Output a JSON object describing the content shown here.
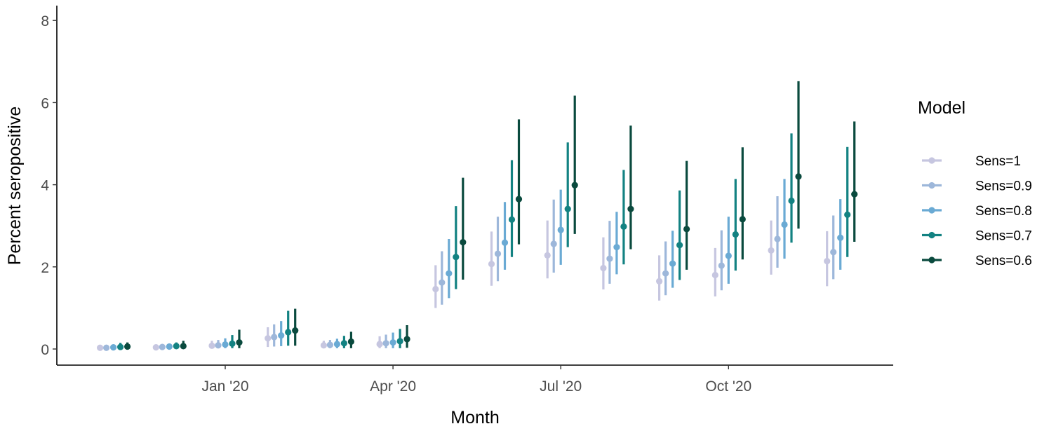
{
  "chart_data": {
    "type": "scatter",
    "subtype": "point-range",
    "xlabel": "Month",
    "ylabel": "Percent seropositive",
    "ylim": [
      0,
      8
    ],
    "y_ticks": [
      0,
      2,
      4,
      6,
      8
    ],
    "x_tick_labels": [
      "Jan '20",
      "Apr '20",
      "Jul '20",
      "Oct '20"
    ],
    "x_tick_months": [
      "2020-01",
      "2020-04",
      "2020-07",
      "2020-10"
    ],
    "months": [
      "2019-11",
      "2019-12",
      "2020-01",
      "2020-02",
      "2020-03",
      "2020-04",
      "2020-05",
      "2020-06",
      "2020-07",
      "2020-08",
      "2020-09",
      "2020-10",
      "2020-11",
      "2020-12"
    ],
    "legend": {
      "title": "Model",
      "position": "right"
    },
    "grid": false,
    "series": [
      {
        "name": "Sens=1",
        "color": "#c6c6e0",
        "values": [
          0.03,
          0.04,
          0.08,
          0.26,
          0.09,
          0.12,
          1.46,
          2.07,
          2.28,
          1.97,
          1.65,
          1.8,
          2.4,
          2.14
        ],
        "lower": [
          0.0,
          0.0,
          0.02,
          0.05,
          0.02,
          0.02,
          1.0,
          1.54,
          1.72,
          1.45,
          1.18,
          1.28,
          1.81,
          1.53
        ],
        "upper": [
          0.08,
          0.1,
          0.2,
          0.53,
          0.2,
          0.31,
          2.04,
          2.86,
          3.13,
          2.72,
          2.28,
          2.46,
          3.13,
          2.87
        ]
      },
      {
        "name": "Sens=0.9",
        "color": "#9db7da",
        "values": [
          0.03,
          0.05,
          0.09,
          0.29,
          0.1,
          0.14,
          1.62,
          2.32,
          2.56,
          2.2,
          1.84,
          2.03,
          2.68,
          2.36
        ],
        "lower": [
          0.0,
          0.0,
          0.02,
          0.06,
          0.02,
          0.02,
          1.08,
          1.65,
          1.86,
          1.59,
          1.31,
          1.43,
          1.98,
          1.7
        ],
        "upper": [
          0.09,
          0.11,
          0.22,
          0.6,
          0.22,
          0.35,
          2.38,
          3.22,
          3.64,
          3.12,
          2.62,
          2.89,
          3.72,
          3.25
        ]
      },
      {
        "name": "Sens=0.8",
        "color": "#6aaad4",
        "values": [
          0.04,
          0.06,
          0.11,
          0.33,
          0.12,
          0.16,
          1.84,
          2.59,
          2.9,
          2.48,
          2.08,
          2.27,
          3.03,
          2.71
        ],
        "lower": [
          0.0,
          0.0,
          0.02,
          0.07,
          0.02,
          0.02,
          1.24,
          1.93,
          2.05,
          1.82,
          1.49,
          1.59,
          2.2,
          1.93
        ],
        "upper": [
          0.11,
          0.13,
          0.26,
          0.68,
          0.25,
          0.4,
          2.68,
          3.58,
          3.88,
          3.34,
          2.88,
          3.22,
          4.14,
          3.65
        ]
      },
      {
        "name": "Sens=0.7",
        "color": "#138282",
        "values": [
          0.05,
          0.07,
          0.13,
          0.41,
          0.14,
          0.19,
          2.24,
          3.15,
          3.41,
          2.98,
          2.53,
          2.79,
          3.61,
          3.27
        ],
        "lower": [
          0.0,
          0.0,
          0.02,
          0.08,
          0.02,
          0.02,
          1.46,
          2.24,
          2.48,
          2.06,
          1.68,
          1.91,
          2.59,
          2.24
        ],
        "upper": [
          0.15,
          0.16,
          0.34,
          0.93,
          0.32,
          0.49,
          3.48,
          4.6,
          5.03,
          4.36,
          3.86,
          4.14,
          5.25,
          4.92
        ]
      },
      {
        "name": "Sens=0.6",
        "color": "#0a4a3e",
        "values": [
          0.06,
          0.07,
          0.16,
          0.45,
          0.18,
          0.24,
          2.6,
          3.65,
          3.99,
          3.41,
          2.92,
          3.16,
          4.2,
          3.77
        ],
        "lower": [
          0.0,
          0.0,
          0.02,
          0.08,
          0.02,
          0.03,
          1.69,
          2.55,
          2.8,
          2.43,
          1.93,
          2.18,
          2.93,
          2.61
        ],
        "upper": [
          0.16,
          0.2,
          0.47,
          0.98,
          0.42,
          0.58,
          4.17,
          5.59,
          6.17,
          5.44,
          4.58,
          4.91,
          6.52,
          5.54
        ]
      }
    ]
  }
}
